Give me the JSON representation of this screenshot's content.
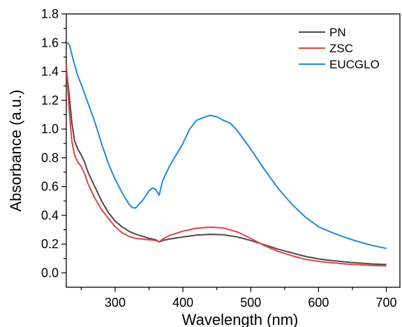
{
  "chart_data": {
    "type": "line",
    "title": "",
    "xlabel": "Wavelength (nm)",
    "ylabel": "Absorbance (a.u.)",
    "xlim": [
      228,
      720
    ],
    "ylim": [
      -0.1,
      1.8
    ],
    "xticks": [
      300,
      400,
      500,
      600,
      700
    ],
    "xtick_labels": [
      "300",
      "400",
      "500",
      "600",
      "700"
    ],
    "yticks": [
      0.0,
      0.2,
      0.4,
      0.6,
      0.8,
      1.0,
      1.2,
      1.4,
      1.6,
      1.8
    ],
    "ytick_labels": [
      "0.0",
      "0.2",
      "0.4",
      "0.6",
      "0.8",
      "1.0",
      "1.2",
      "1.4",
      "1.6",
      "1.8"
    ],
    "grid": false,
    "legend_position": "top-right",
    "series": [
      {
        "name": "PN",
        "color": "#4a4a4a",
        "x": [
          228,
          232,
          236,
          240,
          245,
          250,
          255,
          260,
          270,
          280,
          290,
          300,
          310,
          320,
          330,
          340,
          350,
          360,
          365,
          370,
          380,
          400,
          420,
          440,
          460,
          480,
          500,
          520,
          540,
          560,
          580,
          600,
          620,
          640,
          660,
          680,
          700
        ],
        "y": [
          1.42,
          1.25,
          1.05,
          0.92,
          0.86,
          0.82,
          0.77,
          0.7,
          0.6,
          0.5,
          0.42,
          0.36,
          0.32,
          0.29,
          0.27,
          0.255,
          0.24,
          0.23,
          0.215,
          0.225,
          0.235,
          0.25,
          0.262,
          0.268,
          0.265,
          0.25,
          0.225,
          0.195,
          0.165,
          0.14,
          0.115,
          0.097,
          0.085,
          0.076,
          0.068,
          0.062,
          0.058
        ]
      },
      {
        "name": "ZSC",
        "color": "#e84040",
        "x": [
          228,
          232,
          236,
          240,
          245,
          250,
          255,
          260,
          270,
          280,
          290,
          300,
          310,
          320,
          330,
          340,
          350,
          360,
          365,
          370,
          380,
          400,
          420,
          440,
          460,
          480,
          500,
          520,
          540,
          560,
          580,
          600,
          620,
          640,
          660,
          680,
          700
        ],
        "y": [
          1.45,
          1.15,
          0.92,
          0.82,
          0.77,
          0.74,
          0.69,
          0.62,
          0.52,
          0.44,
          0.38,
          0.32,
          0.28,
          0.255,
          0.24,
          0.235,
          0.23,
          0.225,
          0.215,
          0.235,
          0.26,
          0.29,
          0.31,
          0.318,
          0.312,
          0.285,
          0.24,
          0.19,
          0.15,
          0.12,
          0.095,
          0.08,
          0.07,
          0.062,
          0.056,
          0.051,
          0.048
        ]
      },
      {
        "name": "EUCGLO",
        "color": "#1f8ad8",
        "x": [
          228,
          230,
          233,
          236,
          240,
          245,
          250,
          260,
          270,
          280,
          290,
          300,
          310,
          320,
          325,
          330,
          340,
          350,
          355,
          360,
          365,
          370,
          380,
          390,
          400,
          410,
          420,
          430,
          440,
          450,
          460,
          470,
          480,
          500,
          520,
          540,
          560,
          580,
          600,
          620,
          640,
          660,
          680,
          700
        ],
        "y": [
          1.59,
          1.6,
          1.58,
          1.52,
          1.45,
          1.37,
          1.31,
          1.18,
          1.05,
          0.9,
          0.76,
          0.65,
          0.56,
          0.48,
          0.455,
          0.45,
          0.5,
          0.57,
          0.59,
          0.58,
          0.54,
          0.64,
          0.74,
          0.82,
          0.9,
          1.0,
          1.06,
          1.08,
          1.095,
          1.085,
          1.06,
          1.04,
          0.99,
          0.86,
          0.72,
          0.59,
          0.48,
          0.39,
          0.32,
          0.28,
          0.245,
          0.215,
          0.19,
          0.17
        ]
      }
    ]
  }
}
